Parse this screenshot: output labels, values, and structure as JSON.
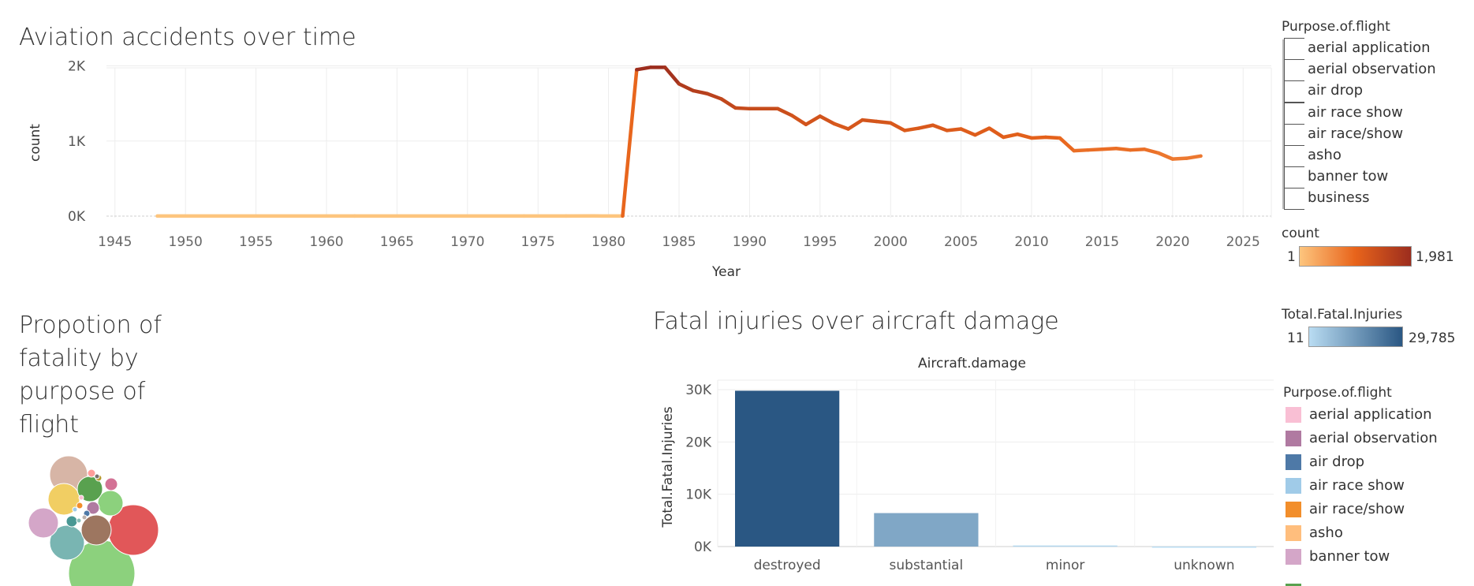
{
  "line_chart": {
    "title": "Aviation accidents over time",
    "xlabel": "Year",
    "ylabel": "count"
  },
  "bubble_chart": {
    "title_lines": [
      "Propotion of",
      "fatality by",
      "purpose of",
      "flight"
    ]
  },
  "bar_chart": {
    "title": "Fatal injuries over aircraft damage",
    "column_header": "Aircraft.damage",
    "ylabel": "Total.Fatal.Injuries"
  },
  "filter_legend": {
    "title": "Purpose.of.flight",
    "items": [
      "aerial application",
      "aerial observation",
      "air drop",
      "air race show",
      "air race/show",
      "asho",
      "banner tow",
      "business"
    ]
  },
  "count_legend": {
    "title": "count",
    "min": "1",
    "max": "1,981"
  },
  "fatal_legend": {
    "title": "Total.Fatal.Injuries",
    "min": "11",
    "max": "29,785"
  },
  "color_legend": {
    "title": "Purpose.of.flight",
    "items": [
      {
        "label": "aerial application",
        "color": "#f9bfd4"
      },
      {
        "label": "aerial observation",
        "color": "#b07aa1"
      },
      {
        "label": "air drop",
        "color": "#4e79a7"
      },
      {
        "label": "air race show",
        "color": "#a0cbe8"
      },
      {
        "label": "air race/show",
        "color": "#f28e2b"
      },
      {
        "label": "asho",
        "color": "#ffbe7d"
      },
      {
        "label": "banner tow",
        "color": "#d4a6c8"
      }
    ]
  },
  "colors": {
    "count_low": "#fdc57e",
    "count_mid": "#e8641b",
    "count_high": "#9c2d1e",
    "fatal_low": "#b9dcf2",
    "fatal_high": "#2a5783"
  },
  "chart_data": [
    {
      "type": "line",
      "title": "Aviation accidents over time",
      "xlabel": "Year",
      "ylabel": "count",
      "xlim": [
        1943,
        2027
      ],
      "ylim": [
        0,
        2100
      ],
      "x_ticks": [
        1945,
        1950,
        1955,
        1960,
        1965,
        1970,
        1975,
        1980,
        1985,
        1990,
        1995,
        2000,
        2005,
        2010,
        2015,
        2020,
        2025
      ],
      "y_ticks": [
        0,
        1000,
        2000
      ],
      "y_tick_labels": [
        "0K",
        "1K",
        "2K"
      ],
      "x": [
        1948,
        1962,
        1974,
        1977,
        1979,
        1981,
        1982,
        1983,
        1984,
        1985,
        1986,
        1987,
        1988,
        1989,
        1990,
        1991,
        1992,
        1993,
        1994,
        1995,
        1996,
        1997,
        1998,
        1999,
        2000,
        2001,
        2002,
        2003,
        2004,
        2005,
        2006,
        2007,
        2008,
        2009,
        2010,
        2011,
        2012,
        2013,
        2014,
        2015,
        2016,
        2017,
        2018,
        2019,
        2020,
        2021,
        2022
      ],
      "y": [
        1,
        1,
        1,
        1,
        2,
        1,
        1950,
        1981,
        1981,
        1760,
        1670,
        1630,
        1560,
        1440,
        1430,
        1430,
        1430,
        1340,
        1220,
        1330,
        1230,
        1160,
        1280,
        1260,
        1240,
        1140,
        1170,
        1210,
        1140,
        1160,
        1080,
        1170,
        1050,
        1090,
        1040,
        1050,
        1040,
        870,
        880,
        890,
        900,
        880,
        890,
        840,
        760,
        770,
        800
      ],
      "grid": true
    },
    {
      "type": "bubble",
      "title": "Propotion of fatality by purpose of flight",
      "bubbles": [
        {
          "color": "#8cd17d",
          "size": 42
        },
        {
          "color": "#e15759",
          "size": 32
        },
        {
          "color": "#d7b5a6",
          "size": 24
        },
        {
          "color": "#79b5b2",
          "size": 22
        },
        {
          "color": "#f1ce63",
          "size": 20
        },
        {
          "color": "#d4a6c8",
          "size": 19
        },
        {
          "color": "#9d7660",
          "size": 19
        },
        {
          "color": "#8cd17d",
          "size": 16
        },
        {
          "color": "#59a14f",
          "size": 16
        },
        {
          "color": "#d37295",
          "size": 8
        },
        {
          "color": "#b07aa1",
          "size": 8
        },
        {
          "color": "#499894",
          "size": 7
        },
        {
          "color": "#ff9d9a",
          "size": 5
        },
        {
          "color": "#4e79a7",
          "size": 4
        },
        {
          "color": "#f28e2b",
          "size": 4
        },
        {
          "color": "#b6992d",
          "size": 4
        },
        {
          "color": "#86bcb6",
          "size": 3
        },
        {
          "color": "#bab0ac",
          "size": 3
        },
        {
          "color": "#79706e",
          "size": 3
        },
        {
          "color": "#fabfd2",
          "size": 3
        },
        {
          "color": "#a0cbe8",
          "size": 3
        }
      ]
    },
    {
      "type": "bar",
      "title": "Fatal injuries over aircraft damage",
      "column_header": "Aircraft.damage",
      "ylabel": "Total.Fatal.Injuries",
      "categories": [
        "destroyed",
        "substantial",
        "minor",
        "unknown"
      ],
      "values": [
        29785,
        6400,
        200,
        11
      ],
      "ylim": [
        0,
        30000
      ],
      "y_ticks": [
        0,
        10000,
        20000,
        30000
      ],
      "y_tick_labels": [
        "0K",
        "10K",
        "20K",
        "30K"
      ],
      "grid": true
    }
  ]
}
